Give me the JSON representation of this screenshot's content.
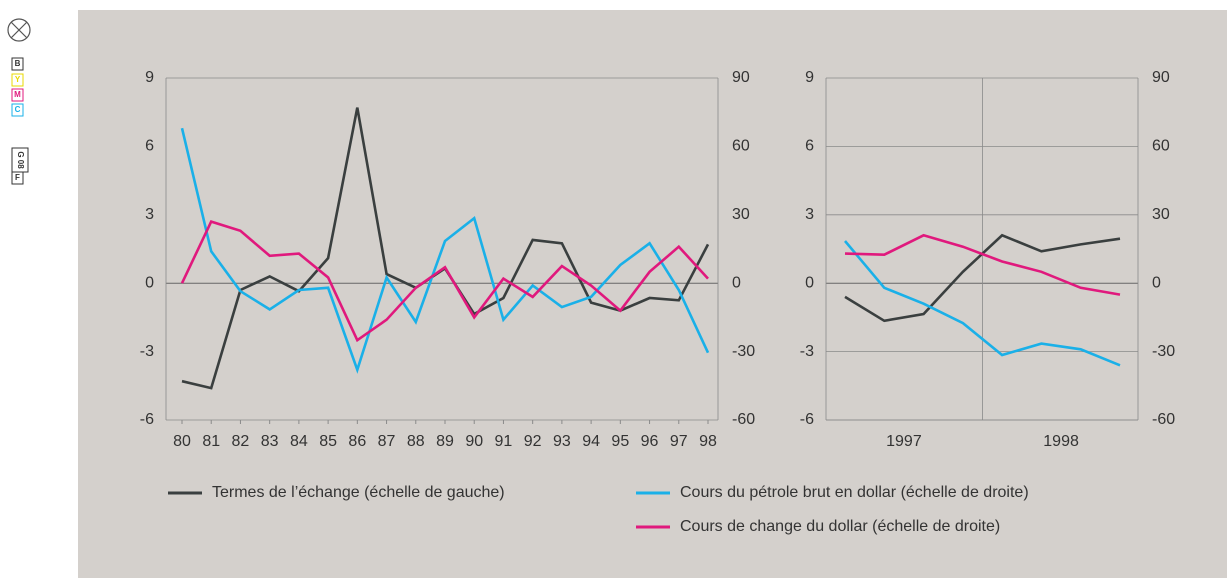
{
  "print_marks": [
    "B",
    "Y",
    "M",
    "C",
    "G 08",
    "F"
  ],
  "chart_data": [
    {
      "type": "line",
      "categories": [
        "80",
        "81",
        "82",
        "83",
        "84",
        "85",
        "86",
        "87",
        "88",
        "89",
        "90",
        "91",
        "92",
        "93",
        "94",
        "95",
        "96",
        "97",
        "98"
      ],
      "ylim": [
        -6,
        9
      ],
      "yticks": [
        -6,
        -3,
        0,
        3,
        6,
        9
      ],
      "y2lim": [
        -60,
        90
      ],
      "y2ticks": [
        -60,
        -30,
        0,
        30,
        60,
        90
      ],
      "grid": false,
      "series": [
        {
          "name": "Termes de l’échange (échelle de gauche)",
          "color": "#3a3f3f",
          "values": [
            -4.3,
            -4.6,
            -0.3,
            0.3,
            -0.35,
            1.1,
            7.7,
            0.4,
            -0.2,
            0.65,
            -1.35,
            -0.65,
            1.9,
            1.75,
            -0.85,
            -1.2,
            -0.65,
            -0.75,
            1.7
          ]
        },
        {
          "name": "Cours du pétrole brut en dollar (échelle de droite)",
          "color": "#1ab0e8",
          "axis": "y2",
          "values": [
            68,
            14,
            -3.5,
            -11.5,
            -3,
            -2,
            -38,
            2.5,
            -17,
            18.5,
            28.5,
            -16,
            -1,
            -10.5,
            -6,
            8,
            17.5,
            -3,
            -30.5
          ]
        },
        {
          "name": "Cours de change du dollar (échelle de droite)",
          "color": "#e0197d",
          "axis": "y2",
          "values": [
            0,
            27,
            23,
            12,
            13,
            2.5,
            -25,
            -16,
            -2,
            7,
            -15,
            2,
            -6,
            7.5,
            -1,
            -12,
            5,
            16,
            2
          ]
        }
      ]
    },
    {
      "type": "line",
      "categories": [
        null,
        null,
        null,
        null,
        null,
        null,
        null,
        null
      ],
      "groups": [
        "1997",
        "1998"
      ],
      "ylim": [
        -6,
        9
      ],
      "yticks": [
        -6,
        -3,
        0,
        3,
        6,
        9
      ],
      "y2lim": [
        -60,
        90
      ],
      "y2ticks": [
        -60,
        -30,
        0,
        30,
        60,
        90
      ],
      "grid": true,
      "series": [
        {
          "color": "#3a3f3f",
          "values": [
            -0.6,
            -1.65,
            -1.35,
            0.5,
            2.1,
            1.4,
            1.7,
            1.95
          ]
        },
        {
          "color": "#1ab0e8",
          "axis": "y2",
          "values": [
            18.5,
            -2,
            -9,
            -17.5,
            -31.5,
            -26.5,
            -29,
            -36
          ]
        },
        {
          "color": "#e0197d",
          "axis": "y2",
          "values": [
            13,
            12.5,
            21,
            16,
            9.5,
            5,
            -2,
            -5
          ]
        }
      ]
    }
  ]
}
